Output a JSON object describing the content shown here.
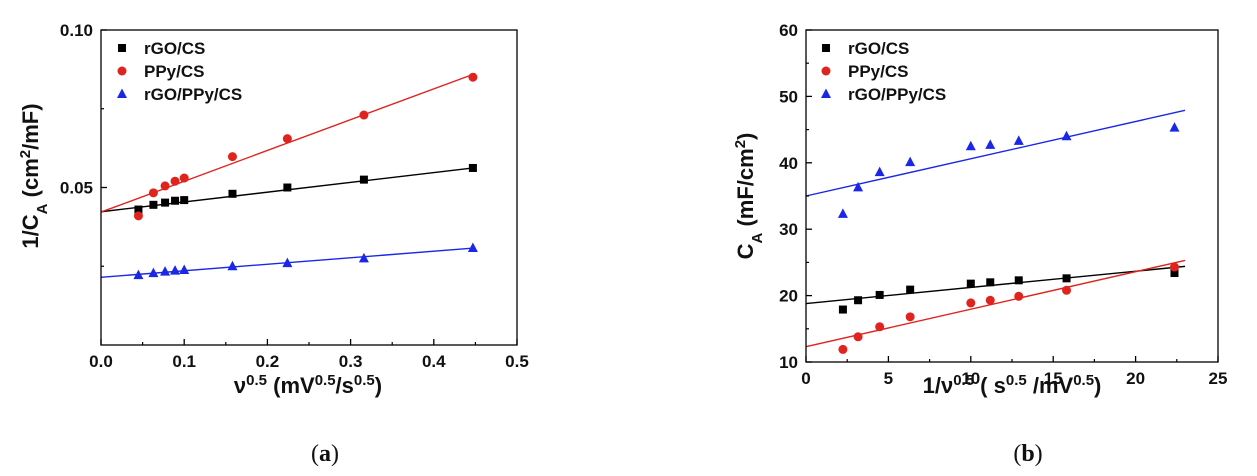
{
  "chart_data": [
    {
      "type": "scatter",
      "panel_label": "a",
      "xlim": [
        0.0,
        0.5
      ],
      "ylim": [
        0.0,
        0.1
      ],
      "xticks": [
        0.0,
        0.1,
        0.2,
        0.3,
        0.4,
        0.5
      ],
      "xtick_labels": [
        "0.0",
        "0.1",
        "0.2",
        "0.3",
        "0.4",
        "0.5"
      ],
      "yticks": [
        0.05,
        0.1
      ],
      "ytick_labels": [
        "0.05",
        "0.10"
      ],
      "xlabel": {
        "base": "ν",
        "sup1": "0.5",
        "mid": " (mV",
        "sup2": "0.5",
        "mid2": "/s",
        "sup3": "0.5",
        "end": ")"
      },
      "ylabel": {
        "base": "1/C",
        "sub": "A",
        "mid": "  (cm",
        "sup": "2",
        "end": "/mF)"
      },
      "legend_position": "top-left",
      "series": [
        {
          "name": "rGO/CS",
          "color": "#000000",
          "marker": "square",
          "x": [
            0.045,
            0.063,
            0.077,
            0.089,
            0.1,
            0.158,
            0.224,
            0.316,
            0.447
          ],
          "y": [
            0.043,
            0.0445,
            0.0452,
            0.0458,
            0.046,
            0.048,
            0.05,
            0.0525,
            0.0562
          ],
          "fit": {
            "x": [
              0.0,
              0.45
            ],
            "y": [
              0.0423,
              0.0563
            ]
          }
        },
        {
          "name": "PPy/CS",
          "color": "#e0231c",
          "marker": "circle",
          "x": [
            0.045,
            0.063,
            0.077,
            0.089,
            0.1,
            0.158,
            0.224,
            0.316,
            0.447
          ],
          "y": [
            0.041,
            0.0483,
            0.0505,
            0.052,
            0.053,
            0.0598,
            0.0655,
            0.073,
            0.085
          ],
          "fit": {
            "x": [
              0.0,
              0.45
            ],
            "y": [
              0.0422,
              0.0862
            ]
          }
        },
        {
          "name": "rGO/PPy/CS",
          "color": "#1b27e6",
          "marker": "triangle",
          "x": [
            0.045,
            0.063,
            0.077,
            0.089,
            0.1,
            0.158,
            0.224,
            0.316,
            0.447
          ],
          "y": [
            0.0222,
            0.0228,
            0.0233,
            0.0236,
            0.0238,
            0.025,
            0.026,
            0.0275,
            0.0308
          ],
          "fit": {
            "x": [
              0.0,
              0.45
            ],
            "y": [
              0.0215,
              0.0308
            ]
          }
        }
      ]
    },
    {
      "type": "scatter",
      "panel_label": "b",
      "xlim": [
        0,
        25
      ],
      "ylim": [
        10,
        60
      ],
      "xticks": [
        0,
        5,
        10,
        15,
        20,
        25
      ],
      "xtick_labels": [
        "0",
        "5",
        "10",
        "15",
        "20",
        "25"
      ],
      "yticks": [
        10,
        20,
        30,
        40,
        50,
        60
      ],
      "ytick_labels": [
        "10",
        "20",
        "30",
        "40",
        "50",
        "60"
      ],
      "xlabel": {
        "base": "1/ν",
        "sup1": "0.5",
        "mid": " ( s",
        "sup2": "0.5",
        "mid2": " /mV",
        "sup3": "0.5",
        "end": ")"
      },
      "ylabel": {
        "base": "C",
        "sub": "A",
        "mid": " (mF/cm",
        "sup": "2",
        "end": ")"
      },
      "legend_position": "top-left",
      "series": [
        {
          "name": "rGO/CS",
          "color": "#000000",
          "marker": "square",
          "x": [
            2.24,
            3.16,
            4.47,
            6.32,
            10.0,
            11.18,
            12.91,
            15.81,
            22.36
          ],
          "y": [
            17.9,
            19.3,
            20.1,
            20.9,
            21.8,
            22.0,
            22.3,
            22.6,
            23.4
          ],
          "fit": {
            "x": [
              0,
              23
            ],
            "y": [
              18.8,
              24.4
            ]
          }
        },
        {
          "name": "PPy/CS",
          "color": "#e0231c",
          "marker": "circle",
          "x": [
            2.24,
            3.16,
            4.47,
            6.32,
            10.0,
            11.18,
            12.91,
            15.81,
            22.36
          ],
          "y": [
            11.9,
            13.8,
            15.3,
            16.8,
            18.9,
            19.3,
            19.9,
            20.8,
            24.3
          ],
          "fit": {
            "x": [
              0,
              23
            ],
            "y": [
              12.3,
              25.3
            ]
          }
        },
        {
          "name": "rGO/PPy/CS",
          "color": "#1b27e6",
          "marker": "triangle",
          "x": [
            2.24,
            3.16,
            4.47,
            6.32,
            10.0,
            11.18,
            12.91,
            15.81,
            22.36
          ],
          "y": [
            32.3,
            36.3,
            38.6,
            40.1,
            42.5,
            42.7,
            43.3,
            44.0,
            45.3
          ],
          "fit": {
            "x": [
              0,
              23
            ],
            "y": [
              35.0,
              47.9
            ]
          }
        }
      ]
    }
  ],
  "captions": {
    "a": {
      "open": "(",
      "letter": "a",
      "close": ")"
    },
    "b": {
      "open": "(",
      "letter": "b",
      "close": ")"
    }
  }
}
